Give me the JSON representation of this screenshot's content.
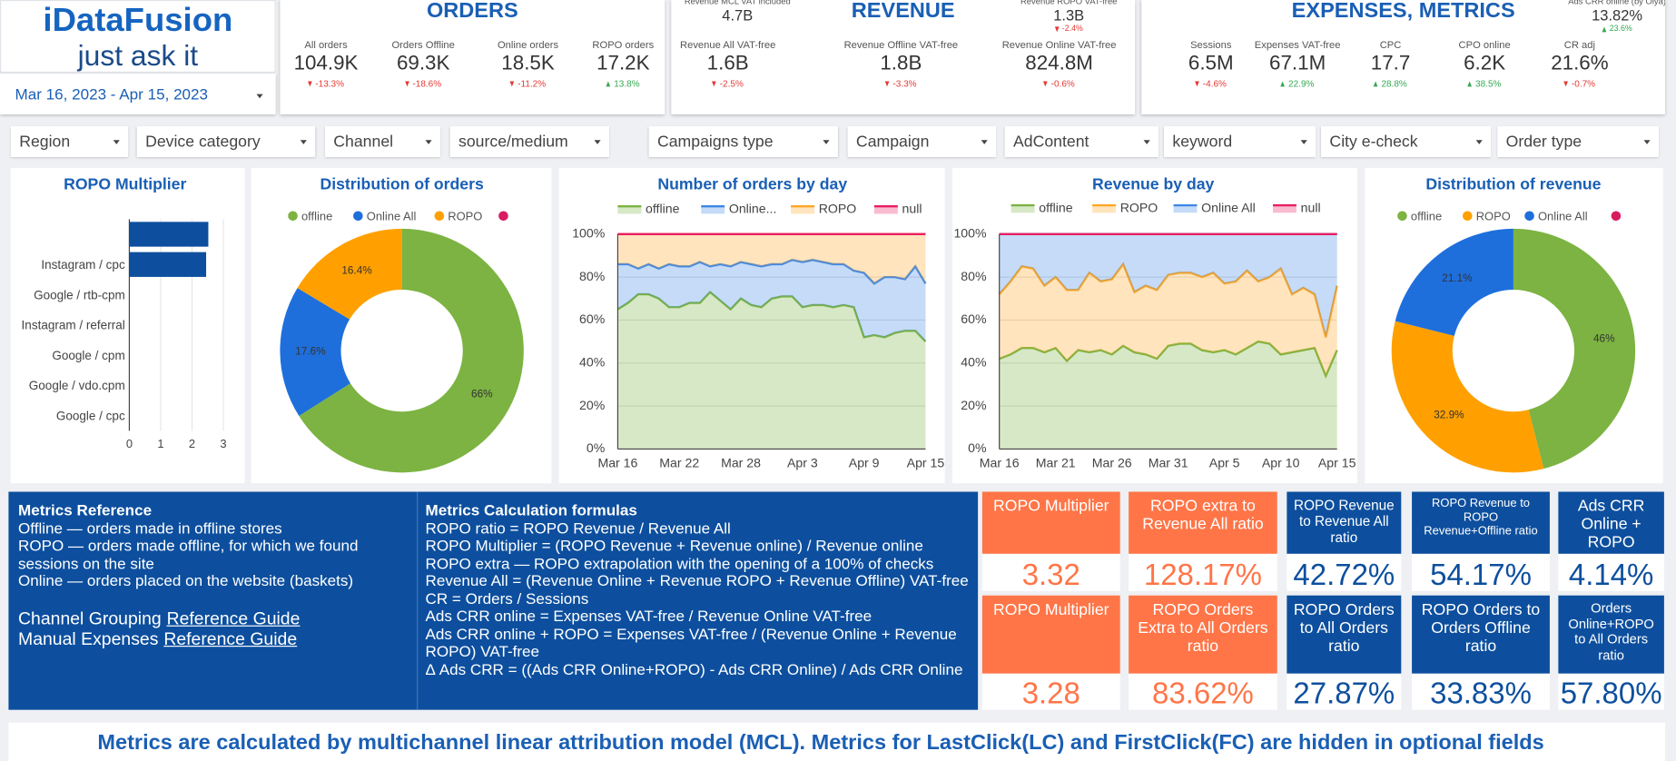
{
  "header": {
    "logo": "iDataFusion",
    "tagline": "just ask it",
    "date_range": "Mar 16, 2023 - Apr 15, 2023"
  },
  "kpi_panels": [
    {
      "title": "ORDERS",
      "kpis": [
        {
          "label": "All orders",
          "value": "104.9K",
          "delta": "-13.3%"
        },
        {
          "label": "Orders Offline",
          "value": "69.3K",
          "delta": "-18.6%"
        },
        {
          "label": "Online orders",
          "value": "18.5K",
          "delta": "-11.2%"
        },
        {
          "label": "ROPO orders",
          "value": "17.2K",
          "delta": "13.8%"
        }
      ]
    },
    {
      "title": "REVENUE",
      "extra": [
        {
          "label": "Revenue MCL VAT included",
          "value": "4.7B"
        },
        {
          "label": "Revenue ROPO VAT-free",
          "value": "1.3B",
          "delta": "-2.4%"
        }
      ],
      "kpis": [
        {
          "label": "Revenue All VAT-free",
          "value": "1.6B",
          "delta": "-2.5%"
        },
        {
          "label": "Revenue Offline VAT-free",
          "value": "1.8B",
          "delta": "-3.3%"
        },
        {
          "label": "Revenue Online VAT-free",
          "value": "824.8M",
          "delta": "-0.6%"
        }
      ]
    },
    {
      "title": "EXPENSES, METRICS",
      "extra": [
        {
          "label": "Ads CRR online (by Olya)",
          "value": "13.82%",
          "delta": "23.6%"
        }
      ],
      "kpis": [
        {
          "label": "Sessions",
          "value": "6.5M",
          "delta": "-4.6%"
        },
        {
          "label": "Expenses VAT-free",
          "value": "67.1M",
          "delta": "22.9%"
        },
        {
          "label": "CPC",
          "value": "17.7",
          "delta": "28.8%"
        },
        {
          "label": "CPO online",
          "value": "6.2K",
          "delta": "38.5%"
        },
        {
          "label": "CR adj",
          "value": "21.6%",
          "delta": "-0.7%"
        }
      ]
    }
  ],
  "filters": [
    "Region",
    "Device category",
    "Channel",
    "source/medium",
    "Campaigns type",
    "Campaign",
    "AdContent",
    "keyword",
    "City e-check",
    "Order type"
  ],
  "chart_data": [
    {
      "type": "bar",
      "orientation": "horizontal",
      "title": "ROPO Multiplier",
      "color": "#0d4f9e",
      "categories": [
        null,
        "Instagram / cpc",
        "Google / rtb-cpm",
        "Instagram / referral",
        "Google / cpm",
        "Google / vdo.cpm",
        "Google / cpc"
      ],
      "values": [
        2.52,
        2.45,
        0,
        0,
        0,
        0,
        0
      ],
      "xlim": [
        0,
        3
      ],
      "xticks": [
        0,
        1,
        2,
        3
      ],
      "grid": true
    },
    {
      "type": "pie",
      "donut": true,
      "title": "Distribution of orders",
      "categories": [
        "offline",
        "Online All",
        "ROPO",
        null
      ],
      "values": [
        66,
        17.6,
        16.4,
        0
      ],
      "value_labels": [
        "66%",
        "17.6%",
        "16.4%",
        null
      ],
      "colors": [
        "#7cb342",
        "#1e6fdc",
        "#ffa000",
        "#d81b60"
      ]
    },
    {
      "type": "area",
      "stacked": true,
      "title": "Number of orders by day",
      "categories": [
        "Mar 16",
        null,
        null,
        null,
        null,
        null,
        "Mar 22",
        null,
        null,
        null,
        null,
        null,
        "Mar 28",
        null,
        null,
        null,
        null,
        null,
        "Apr 3",
        null,
        null,
        null,
        null,
        null,
        "Apr 9",
        null,
        null,
        null,
        null,
        null,
        "Apr 15"
      ],
      "series": [
        {
          "name": "offline",
          "color": "#7cb342",
          "values": [
            65,
            68,
            72,
            72,
            70,
            66,
            66,
            68,
            68,
            73,
            69,
            65,
            70,
            67,
            66,
            70,
            71,
            71,
            66,
            67,
            67,
            66,
            67,
            66,
            52,
            53,
            52,
            54,
            55,
            55,
            50
          ]
        },
        {
          "name": "Online...",
          "color": "#3f88e6",
          "values": [
            21,
            18,
            12,
            14,
            14,
            20,
            19,
            17,
            19,
            12,
            17,
            20,
            17,
            19,
            19,
            16,
            15,
            17,
            21,
            21,
            20,
            20,
            19,
            17,
            30,
            24,
            28,
            26,
            24,
            30,
            27
          ]
        },
        {
          "name": "ROPO",
          "color": "#ffa726",
          "values": [
            14,
            14,
            16,
            14,
            16,
            14,
            15,
            15,
            13,
            15,
            14,
            15,
            13,
            14,
            15,
            14,
            14,
            12,
            13,
            12,
            13,
            14,
            14,
            17,
            18,
            23,
            20,
            20,
            21,
            15,
            23
          ]
        },
        {
          "name": "null",
          "color": "#e91e63",
          "values": [
            0,
            0,
            0,
            0,
            0,
            0,
            0,
            0,
            0,
            0,
            0,
            0,
            0,
            0,
            0,
            0,
            0,
            0,
            0,
            0,
            0,
            0,
            0,
            0,
            0,
            0,
            0,
            0,
            0,
            0,
            0
          ]
        }
      ],
      "ylim": [
        0,
        100
      ],
      "yticks": [
        {
          "value": 0,
          "label": "0%"
        },
        {
          "value": 20,
          "label": "20%"
        },
        {
          "value": 40,
          "label": "40%"
        },
        {
          "value": 60,
          "label": "60%"
        },
        {
          "value": 80,
          "label": "80%"
        },
        {
          "value": 100,
          "label": "100%"
        }
      ],
      "grid": true
    },
    {
      "type": "area",
      "stacked": true,
      "title": "Revenue by day",
      "categories": [
        "Mar 16",
        null,
        null,
        null,
        null,
        "Mar 21",
        null,
        null,
        null,
        null,
        "Mar 26",
        null,
        null,
        null,
        null,
        "Mar 31",
        null,
        null,
        null,
        null,
        "Apr 5",
        null,
        null,
        null,
        null,
        "Apr 10",
        null,
        null,
        null,
        null,
        "Apr 15"
      ],
      "series": [
        {
          "name": "offline",
          "color": "#7cb342",
          "values": [
            42,
            44,
            47,
            47,
            45,
            47,
            41,
            46,
            45,
            46,
            44,
            48,
            45,
            44,
            42,
            48,
            49,
            49,
            46,
            45,
            46,
            44,
            47,
            50,
            49,
            44,
            45,
            46,
            47,
            34,
            46
          ]
        },
        {
          "name": "ROPO",
          "color": "#ffa726",
          "values": [
            30,
            34,
            38,
            37,
            31,
            33,
            33,
            28,
            37,
            32,
            35,
            38,
            28,
            32,
            32,
            33,
            33,
            33,
            34,
            37,
            31,
            34,
            36,
            28,
            31,
            40,
            27,
            29,
            25,
            18,
            30
          ]
        },
        {
          "name": "Online All",
          "color": "#3f88e6",
          "values": [
            28,
            22,
            15,
            16,
            24,
            20,
            26,
            26,
            18,
            22,
            21,
            14,
            27,
            24,
            26,
            19,
            18,
            18,
            20,
            18,
            23,
            22,
            17,
            22,
            20,
            16,
            28,
            25,
            28,
            48,
            24
          ]
        },
        {
          "name": "null",
          "color": "#e91e63",
          "values": [
            0,
            0,
            0,
            0,
            0,
            0,
            0,
            0,
            0,
            0,
            0,
            0,
            0,
            0,
            0,
            0,
            0,
            0,
            0,
            0,
            0,
            0,
            0,
            0,
            0,
            0,
            0,
            0,
            0,
            0,
            0
          ]
        }
      ],
      "ylim": [
        0,
        100
      ],
      "yticks": [
        {
          "value": 0,
          "label": "0%"
        },
        {
          "value": 20,
          "label": "20%"
        },
        {
          "value": 40,
          "label": "40%"
        },
        {
          "value": 60,
          "label": "60%"
        },
        {
          "value": 80,
          "label": "80%"
        },
        {
          "value": 100,
          "label": "100%"
        }
      ],
      "grid": true
    },
    {
      "type": "pie",
      "donut": true,
      "title": "Distribution of revenue",
      "categories": [
        "offline",
        "ROPO",
        "Online All",
        null
      ],
      "values": [
        46,
        32.9,
        21.1,
        0
      ],
      "value_labels": [
        "46%",
        "32.9%",
        "21.1%",
        null
      ],
      "colors": [
        "#7cb342",
        "#ffa000",
        "#1e6fdc",
        "#d81b60"
      ]
    }
  ],
  "reference": {
    "title": "Metrics Reference",
    "lines": [
      "Offline — orders made in offline stores",
      "ROPO — orders made offline, for which we found sessions on the site",
      "Online — orders placed on the website (baskets)"
    ],
    "links": [
      {
        "label": "Channel Grouping",
        "link": "Reference Guide"
      },
      {
        "label": "Manual Expenses",
        "link": "Reference Guide"
      }
    ]
  },
  "formulas": {
    "title": "Metrics Calculation formulas",
    "lines": [
      "ROPO ratio = ROPO Revenue / Revenue All",
      "ROPO Multiplier = (ROPO Revenue + Revenue online) / Revenue online",
      "ROPO extra —  ROPO extrapolation with the opening of a 100%  of checks",
      "Revenue All = (Revenue Online + Revenue ROPO + Revenue Offline) VAT-free",
      "CR = Orders / Sessions",
      "Ads CRR online = Expenses VAT-free / Revenue Online VAT-free",
      "Ads CRR online + ROPO = Expenses VAT-free / (Revenue Online + Revenue ROPO) VAT-free",
      "Δ Ads CRR = ((Ads CRR Online+ROPO) - Ads CRR Online) / Ads CRR Online"
    ]
  },
  "metric_cards": [
    {
      "title": "ROPO Multiplier",
      "value": "3.32",
      "color": "#ff7547"
    },
    {
      "title": "ROPO extra to Revenue All ratio",
      "value": "128.17%",
      "color": "#ff7547"
    },
    {
      "title": "ROPO Revenue to Revenue All ratio",
      "value": "42.72%",
      "color": "#0d4f9e"
    },
    {
      "title": "ROPO Revenue to ROPO Revenue+Offline ratio",
      "value": "54.17%",
      "color": "#0d4f9e"
    },
    {
      "title": "Ads CRR Online + ROPO",
      "value": "4.14%",
      "color": "#0d4f9e"
    },
    {
      "title": "ROPO Multiplier",
      "value": "3.28",
      "color": "#ff7547"
    },
    {
      "title": "ROPO Orders Extra to All Orders ratio",
      "value": "83.62%",
      "color": "#ff7547"
    },
    {
      "title": "ROPO Orders to All Orders ratio",
      "value": "27.87%",
      "color": "#0d4f9e"
    },
    {
      "title": "ROPO Orders to Orders Offline ratio",
      "value": "33.83%",
      "color": "#0d4f9e"
    },
    {
      "title": "Orders Online+ROPO to All Orders ratio",
      "value": "57.80%",
      "color": "#0d4f9e"
    }
  ],
  "footer": "Metrics are calculated by multichannel linear attribution model (MCL). Metrics for LastClick(LC) and FirstClick(FC) are hidden in optional fields"
}
